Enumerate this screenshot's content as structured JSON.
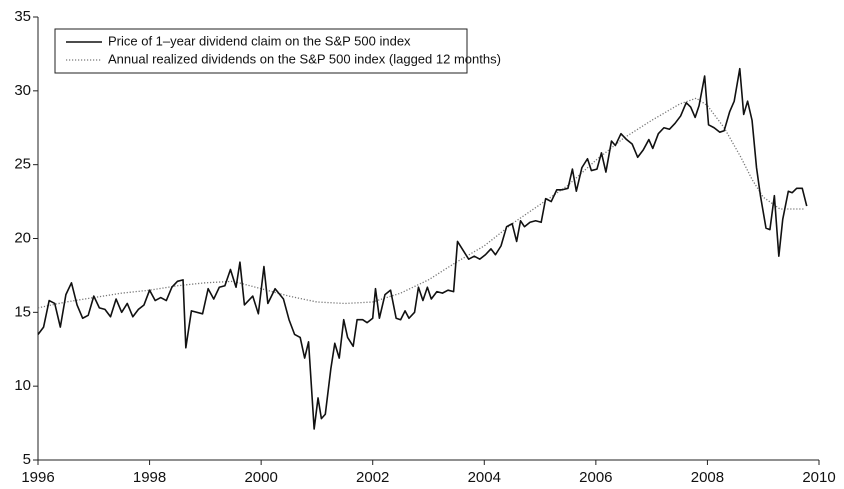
{
  "chart_data": {
    "type": "line",
    "xlim": [
      1996,
      2010
    ],
    "xticks": [
      1996,
      1998,
      2000,
      2002,
      2004,
      2006,
      2008,
      2010
    ],
    "ylim": [
      5,
      35
    ],
    "yticks": [
      5,
      10,
      15,
      20,
      25,
      30,
      35
    ],
    "grid": false,
    "legend": "upper-left",
    "series": [
      {
        "name": "Price of 1–year dividend claim on the S&P 500 index",
        "color": "#111111",
        "style": "solid",
        "x": [
          1996.0,
          1996.1,
          1996.2,
          1996.3,
          1996.4,
          1996.5,
          1996.6,
          1996.7,
          1996.8,
          1996.9,
          1997.0,
          1997.1,
          1997.2,
          1997.3,
          1997.4,
          1997.5,
          1997.6,
          1997.7,
          1997.8,
          1997.9,
          1998.0,
          1998.1,
          1998.2,
          1998.3,
          1998.4,
          1998.5,
          1998.6,
          1998.65,
          1998.75,
          1998.95,
          1999.05,
          1999.15,
          1999.25,
          1999.35,
          1999.45,
          1999.55,
          1999.62,
          1999.7,
          1999.85,
          1999.95,
          2000.05,
          2000.12,
          2000.25,
          2000.4,
          2000.5,
          2000.6,
          2000.7,
          2000.78,
          2000.85,
          2000.95,
          2001.02,
          2001.08,
          2001.15,
          2001.25,
          2001.32,
          2001.4,
          2001.48,
          2001.55,
          2001.65,
          2001.72,
          2001.82,
          2001.9,
          2002.0,
          2002.05,
          2002.12,
          2002.22,
          2002.32,
          2002.42,
          2002.5,
          2002.58,
          2002.65,
          2002.75,
          2002.82,
          2002.9,
          2002.98,
          2003.05,
          2003.15,
          2003.25,
          2003.35,
          2003.45,
          2003.52,
          2003.62,
          2003.72,
          2003.82,
          2003.92,
          2004.02,
          2004.12,
          2004.2,
          2004.3,
          2004.4,
          2004.5,
          2004.58,
          2004.65,
          2004.72,
          2004.82,
          2004.92,
          2005.02,
          2005.1,
          2005.2,
          2005.3,
          2005.4,
          2005.5,
          2005.58,
          2005.65,
          2005.75,
          2005.85,
          2005.92,
          2006.02,
          2006.1,
          2006.18,
          2006.28,
          2006.35,
          2006.45,
          2006.55,
          2006.65,
          2006.75,
          2006.85,
          2006.95,
          2007.02,
          2007.12,
          2007.22,
          2007.32,
          2007.42,
          2007.52,
          2007.62,
          2007.7,
          2007.78,
          2007.85,
          2007.95,
          2008.02,
          2008.12,
          2008.22,
          2008.3,
          2008.4,
          2008.48,
          2008.58,
          2008.65,
          2008.72,
          2008.8,
          2008.88,
          2008.95,
          2009.05,
          2009.12,
          2009.2,
          2009.28,
          2009.35,
          2009.45,
          2009.52,
          2009.6,
          2009.7,
          2009.78
        ],
        "values": [
          13.5,
          14.0,
          15.8,
          15.6,
          14.0,
          16.2,
          17.0,
          15.5,
          14.6,
          14.8,
          16.1,
          15.3,
          15.2,
          14.7,
          15.9,
          15.0,
          15.6,
          14.7,
          15.2,
          15.5,
          16.5,
          15.8,
          16.0,
          15.8,
          16.7,
          17.1,
          17.2,
          12.6,
          15.1,
          14.9,
          16.6,
          15.9,
          16.7,
          16.8,
          17.9,
          16.7,
          18.4,
          15.5,
          16.1,
          14.9,
          18.1,
          15.6,
          16.6,
          15.9,
          14.5,
          13.5,
          13.3,
          11.9,
          13.0,
          7.1,
          9.2,
          7.8,
          8.1,
          11.2,
          12.9,
          11.9,
          14.5,
          13.3,
          12.7,
          14.5,
          14.5,
          14.3,
          14.6,
          16.6,
          14.6,
          16.2,
          16.5,
          14.6,
          14.5,
          15.1,
          14.6,
          15.0,
          16.7,
          15.8,
          16.7,
          15.9,
          16.4,
          16.3,
          16.5,
          16.4,
          19.8,
          19.2,
          18.6,
          18.8,
          18.6,
          18.9,
          19.3,
          18.9,
          19.5,
          20.8,
          21.0,
          19.8,
          21.2,
          20.8,
          21.1,
          21.2,
          21.1,
          22.7,
          22.5,
          23.3,
          23.3,
          23.4,
          24.7,
          23.2,
          24.8,
          25.4,
          24.6,
          24.7,
          25.8,
          24.5,
          26.6,
          26.3,
          27.1,
          26.7,
          26.4,
          25.5,
          26.0,
          26.7,
          26.1,
          27.1,
          27.5,
          27.4,
          27.8,
          28.3,
          29.2,
          28.9,
          28.2,
          29.0,
          31.0,
          27.7,
          27.5,
          27.2,
          27.3,
          28.6,
          29.3,
          31.5,
          28.4,
          29.3,
          28.0,
          24.8,
          22.9,
          20.7,
          20.6,
          22.9,
          18.8,
          21.3,
          23.2,
          23.1,
          23.4,
          23.4,
          22.2
        ]
      },
      {
        "name": "Annual realized dividends on the S&P 500 index (lagged 12 months)",
        "color": "#777777",
        "style": "dotted",
        "x": [
          1996.0,
          1996.5,
          1997.0,
          1997.5,
          1998.0,
          1998.5,
          1999.0,
          1999.5,
          2000.0,
          2000.5,
          2001.0,
          2001.5,
          2002.0,
          2002.5,
          2003.0,
          2003.5,
          2004.0,
          2004.5,
          2005.0,
          2005.5,
          2006.0,
          2006.5,
          2007.0,
          2007.5,
          2007.8,
          2008.0,
          2008.3,
          2008.6,
          2008.8,
          2009.0,
          2009.3,
          2009.6,
          2009.75
        ],
        "values": [
          15.3,
          15.7,
          16.0,
          16.3,
          16.5,
          16.8,
          17.0,
          17.1,
          16.6,
          16.1,
          15.7,
          15.6,
          15.7,
          16.3,
          17.2,
          18.4,
          19.5,
          21.0,
          22.3,
          23.6,
          25.3,
          26.8,
          28.0,
          29.1,
          29.5,
          29.0,
          27.5,
          25.5,
          24.0,
          22.8,
          22.0,
          22.0,
          22.0
        ]
      }
    ]
  }
}
